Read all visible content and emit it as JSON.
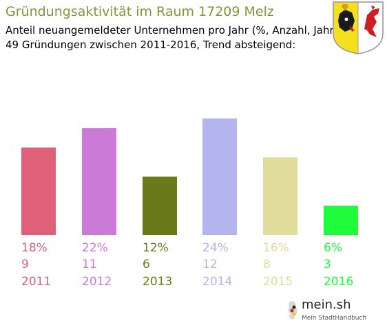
{
  "header": {
    "title": "Gründungsaktivität im Raum 17209 Melz",
    "subtitle_line1": "Anteil neuangemeldeter Unternehmen pro Jahr (%, Anzahl, Jahr)",
    "subtitle_line2": "49 Gründungen zwischen 2011-2016, Trend absteigend:"
  },
  "crest": {
    "icon": "coat-of-arms-mecklenburg-vorpommern"
  },
  "chart_data": {
    "type": "bar",
    "categories": [
      "2011",
      "2012",
      "2013",
      "2014",
      "2015",
      "2016"
    ],
    "values": [
      9,
      11,
      6,
      12,
      8,
      3
    ],
    "percent_labels": [
      "18%",
      "22%",
      "12%",
      "24%",
      "16%",
      "6%"
    ],
    "count_labels": [
      "9",
      "11",
      "6",
      "12",
      "8",
      "3"
    ],
    "colors": [
      "#e0607a",
      "#cc7ad8",
      "#6a7a18",
      "#b4b4ee",
      "#e0dc9c",
      "#1efc3c"
    ],
    "ylim": [
      0,
      12
    ],
    "grid": false,
    "legend": "none"
  },
  "logo": {
    "name": "mein.sh",
    "tagline": "Mein StadtHandbuch",
    "icon": "germany-map-pin-icon"
  }
}
